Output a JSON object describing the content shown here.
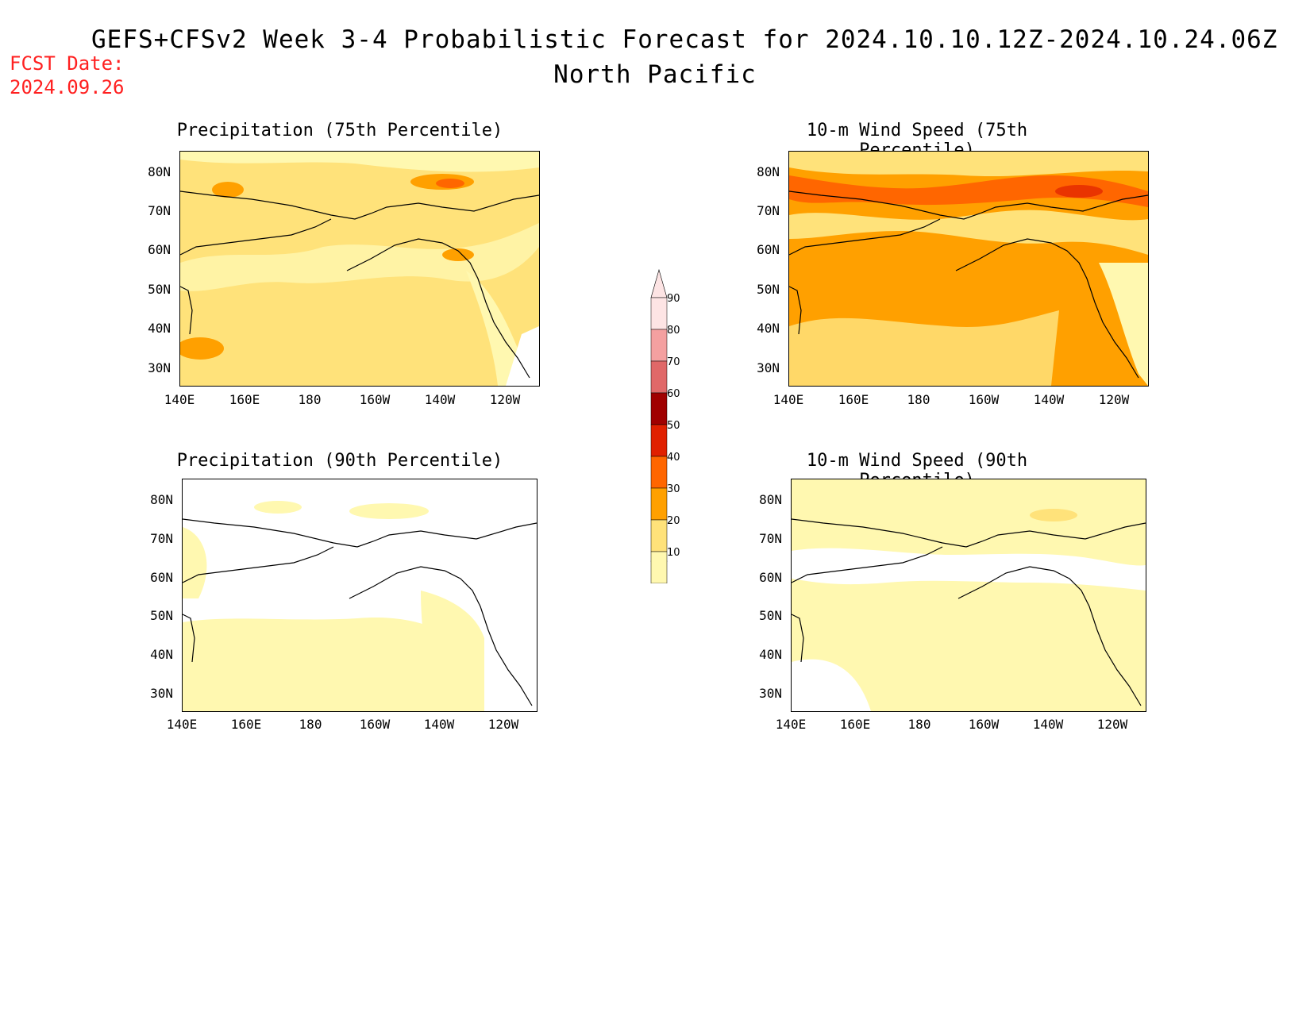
{
  "header": {
    "title": "GEFS+CFSv2 Week 3-4 Probabilistic Forecast for 2024.10.10.12Z-2024.10.24.06Z",
    "subtitle": "North Pacific",
    "fcst_label": "FCST Date:",
    "fcst_date": "2024.09.26"
  },
  "axes": {
    "lat_labels": [
      "80N",
      "70N",
      "60N",
      "50N",
      "40N",
      "30N"
    ],
    "lon_labels": [
      "140E",
      "160E",
      "180",
      "160W",
      "140W",
      "120W"
    ]
  },
  "panels": [
    {
      "id": "precip75",
      "title": "Precipitation (75th Percentile)"
    },
    {
      "id": "wind75",
      "title": "10-m Wind Speed (75th Percentile)"
    },
    {
      "id": "precip90",
      "title": "Precipitation (90th Percentile)"
    },
    {
      "id": "wind90",
      "title": "10-m Wind Speed (90th Percentile)"
    }
  ],
  "colorbar": {
    "labels": [
      "90",
      "80",
      "70",
      "60",
      "50",
      "40",
      "30",
      "20",
      "10"
    ],
    "colors": [
      "#fde4e4",
      "#f4a0a0",
      "#e06868",
      "#a00000",
      "#e02000",
      "#ff6600",
      "#ffa000",
      "#ffe27a",
      "#fff8b0"
    ]
  },
  "palette": {
    "very_light": "#fff8b0",
    "light": "#ffe27a",
    "orange": "#ffa000",
    "dark_orange": "#ff6600",
    "red": "#e02000"
  }
}
